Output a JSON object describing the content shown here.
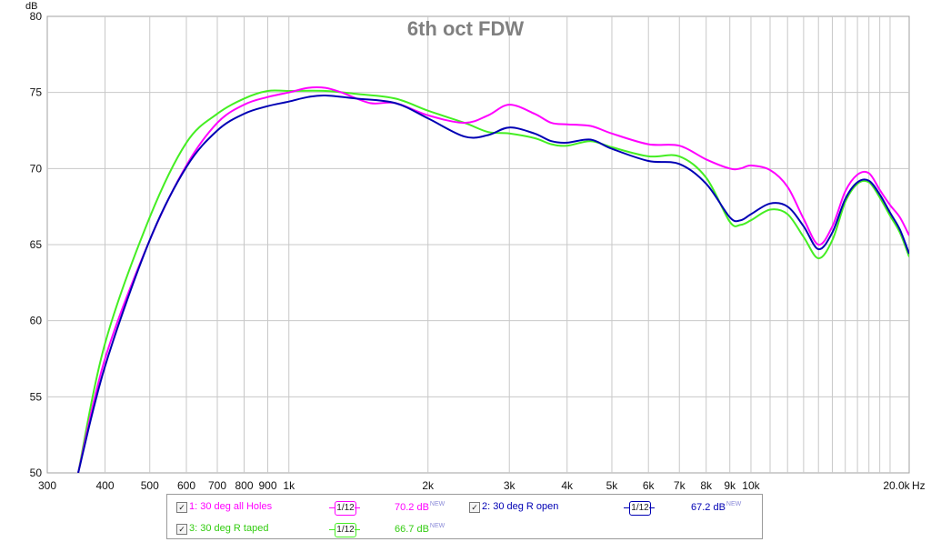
{
  "chart_data": {
    "type": "line",
    "title": "6th oct FDW",
    "ylabel": "dB",
    "xunit": "Hz",
    "xscale": "log",
    "xlim": [
      300,
      22000
    ],
    "ylim": [
      50,
      80
    ],
    "yticks": [
      "50",
      "55",
      "60",
      "65",
      "70",
      "75",
      "80"
    ],
    "xticks": [
      {
        "v": 300,
        "label": "300"
      },
      {
        "v": 400,
        "label": "400"
      },
      {
        "v": 500,
        "label": "500"
      },
      {
        "v": 600,
        "label": "600"
      },
      {
        "v": 700,
        "label": "700"
      },
      {
        "v": 800,
        "label": "800"
      },
      {
        "v": 900,
        "label": "900"
      },
      {
        "v": 1000,
        "label": "1k"
      },
      {
        "v": 2000,
        "label": "2k"
      },
      {
        "v": 3000,
        "label": "3k"
      },
      {
        "v": 4000,
        "label": "4k"
      },
      {
        "v": 5000,
        "label": "5k"
      },
      {
        "v": 6000,
        "label": "6k"
      },
      {
        "v": 7000,
        "label": "7k"
      },
      {
        "v": 8000,
        "label": "8k"
      },
      {
        "v": 9000,
        "label": "9k"
      },
      {
        "v": 10000,
        "label": "10k"
      },
      {
        "v": 20000,
        "label": "20.0k"
      }
    ],
    "grid": true,
    "legend_position": "bottom",
    "series": [
      {
        "name": "1: 30 deg all Holes",
        "color": "#ff00ff",
        "points": [
          [
            350,
            50
          ],
          [
            400,
            57.5
          ],
          [
            500,
            65.3
          ],
          [
            600,
            70.2
          ],
          [
            700,
            73
          ],
          [
            800,
            74.2
          ],
          [
            900,
            74.7
          ],
          [
            1000,
            75
          ],
          [
            1100,
            75.3
          ],
          [
            1200,
            75.3
          ],
          [
            1300,
            75
          ],
          [
            1500,
            74.3
          ],
          [
            1700,
            74.3
          ],
          [
            2000,
            73.5
          ],
          [
            2400,
            73
          ],
          [
            2700,
            73.5
          ],
          [
            3000,
            74.2
          ],
          [
            3400,
            73.6
          ],
          [
            3700,
            73
          ],
          [
            4000,
            72.9
          ],
          [
            4500,
            72.8
          ],
          [
            5000,
            72.3
          ],
          [
            6000,
            71.6
          ],
          [
            7000,
            71.5
          ],
          [
            8000,
            70.6
          ],
          [
            9000,
            70
          ],
          [
            9500,
            70
          ],
          [
            10000,
            70.2
          ],
          [
            11000,
            69.9
          ],
          [
            12000,
            68.8
          ],
          [
            13000,
            66.7
          ],
          [
            14000,
            65
          ],
          [
            15000,
            66.2
          ],
          [
            16000,
            68.5
          ],
          [
            17000,
            69.6
          ],
          [
            18000,
            69.7
          ],
          [
            19000,
            68.6
          ],
          [
            20000,
            67.6
          ],
          [
            21000,
            66.8
          ],
          [
            22000,
            65.6
          ]
        ]
      },
      {
        "name": "2: 30 deg R open",
        "color": "#0000b4",
        "points": [
          [
            350,
            50
          ],
          [
            400,
            57
          ],
          [
            500,
            65.3
          ],
          [
            600,
            70.1
          ],
          [
            700,
            72.5
          ],
          [
            800,
            73.6
          ],
          [
            900,
            74.1
          ],
          [
            1000,
            74.4
          ],
          [
            1100,
            74.7
          ],
          [
            1200,
            74.8
          ],
          [
            1400,
            74.6
          ],
          [
            1700,
            74.3
          ],
          [
            2000,
            73.3
          ],
          [
            2400,
            72.1
          ],
          [
            2700,
            72.2
          ],
          [
            3000,
            72.7
          ],
          [
            3400,
            72.3
          ],
          [
            3700,
            71.8
          ],
          [
            4000,
            71.7
          ],
          [
            4500,
            71.9
          ],
          [
            5000,
            71.3
          ],
          [
            6000,
            70.5
          ],
          [
            7000,
            70.3
          ],
          [
            8000,
            69
          ],
          [
            9000,
            66.8
          ],
          [
            9500,
            66.6
          ],
          [
            10000,
            67
          ],
          [
            11000,
            67.7
          ],
          [
            12000,
            67.5
          ],
          [
            13000,
            66.2
          ],
          [
            14000,
            64.7
          ],
          [
            15000,
            65.8
          ],
          [
            16000,
            68
          ],
          [
            17000,
            69.1
          ],
          [
            18000,
            69.2
          ],
          [
            19000,
            68.3
          ],
          [
            20000,
            67.1
          ],
          [
            21000,
            66
          ],
          [
            22000,
            64.4
          ]
        ]
      },
      {
        "name": "3: 30 deg R taped",
        "color": "#44ee22",
        "points": [
          [
            350,
            50
          ],
          [
            400,
            58.5
          ],
          [
            500,
            66.8
          ],
          [
            600,
            71.7
          ],
          [
            700,
            73.6
          ],
          [
            800,
            74.6
          ],
          [
            900,
            75.1
          ],
          [
            1000,
            75.1
          ],
          [
            1200,
            75.1
          ],
          [
            1400,
            74.9
          ],
          [
            1700,
            74.6
          ],
          [
            2000,
            73.8
          ],
          [
            2400,
            73
          ],
          [
            2700,
            72.4
          ],
          [
            3000,
            72.3
          ],
          [
            3400,
            72
          ],
          [
            3700,
            71.6
          ],
          [
            4000,
            71.5
          ],
          [
            4500,
            71.8
          ],
          [
            5000,
            71.4
          ],
          [
            6000,
            70.8
          ],
          [
            7000,
            70.8
          ],
          [
            8000,
            69.4
          ],
          [
            9000,
            66.5
          ],
          [
            9500,
            66.3
          ],
          [
            10000,
            66.6
          ],
          [
            11000,
            67.3
          ],
          [
            12000,
            67
          ],
          [
            13000,
            65.5
          ],
          [
            14000,
            64.1
          ],
          [
            15000,
            65.3
          ],
          [
            16000,
            67.8
          ],
          [
            17000,
            69
          ],
          [
            18000,
            69.1
          ],
          [
            19000,
            68.1
          ],
          [
            20000,
            66.9
          ],
          [
            21000,
            65.8
          ],
          [
            22000,
            64.2
          ]
        ]
      }
    ]
  },
  "legend": {
    "entries": [
      {
        "checked_mark": "✓",
        "label": "1: 30 deg all Holes",
        "smoothing": "1/12",
        "level": "70.2 dB",
        "level_tag": "NEW",
        "color": "#ff00ff"
      },
      {
        "checked_mark": "✓",
        "label": "2: 30 deg R open",
        "smoothing": "1/12",
        "level": "67.2 dB",
        "level_tag": "NEW",
        "color": "#0000b4"
      },
      {
        "checked_mark": "✓",
        "label": "3: 30 deg R taped",
        "smoothing": "1/12",
        "level": "66.7 dB",
        "level_tag": "NEW",
        "color": "#44ee22"
      }
    ]
  }
}
